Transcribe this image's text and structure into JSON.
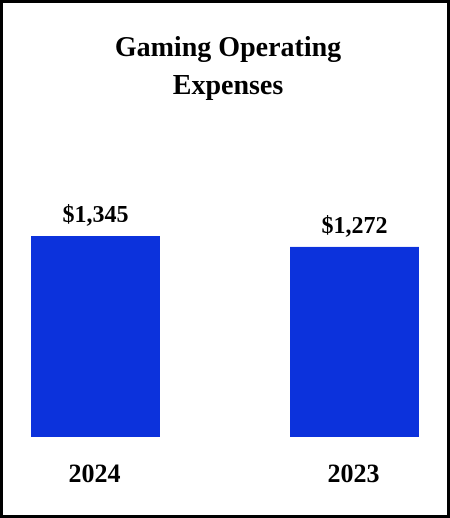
{
  "chart_data": {
    "type": "bar",
    "title_lines": [
      "Gaming Operating",
      "Expenses"
    ],
    "categories": [
      "2024",
      "2023"
    ],
    "values": [
      1345,
      1272
    ],
    "value_labels": [
      "$1,345",
      "$1,272"
    ],
    "ylim": [
      0,
      1345
    ],
    "bar_color": "#0c32dc",
    "grid": false,
    "legend": "none"
  }
}
